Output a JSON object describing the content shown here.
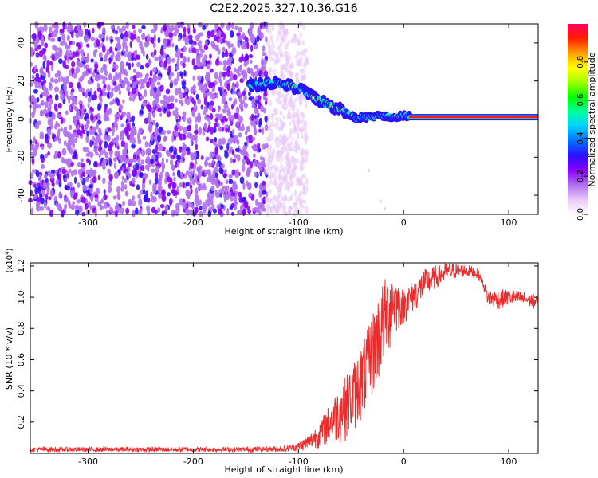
{
  "title": "C2E2.2025.327.10.36.G16",
  "chart_data": [
    {
      "type": "heatmap",
      "name": "spectrogram",
      "xlabel": "Height of straight line (km)",
      "ylabel": "Frequency (Hz)",
      "xlim": [
        -355,
        128
      ],
      "ylim": [
        -50,
        50
      ],
      "xticks": [
        -300,
        -200,
        -100,
        0,
        100
      ],
      "xtick_labels": [
        "-300",
        "-200",
        "-100",
        "0",
        "100"
      ],
      "yticks": [
        -40,
        -20,
        0,
        20,
        40
      ],
      "ytick_labels": [
        "-40",
        "-20",
        "0",
        "20",
        "40"
      ],
      "noise_region_x": [
        -355,
        -100
      ],
      "signal_track": {
        "x": [
          -147,
          -130,
          -120,
          -110,
          -100,
          -90,
          -80,
          -70,
          -60,
          -50,
          -45,
          -40,
          -30,
          -20,
          -10,
          0,
          10,
          50,
          100,
          128
        ],
        "y": [
          17,
          19,
          19,
          18,
          16,
          13,
          10,
          7,
          5,
          2,
          0,
          1,
          1,
          2,
          1,
          2,
          1,
          0.5,
          0.5,
          0.5
        ]
      },
      "colorbar": {
        "label": "Normalized spectral amplitude",
        "range": [
          0.0,
          1.0
        ],
        "ticks": [
          0.0,
          0.2,
          0.4,
          0.6,
          0.8
        ],
        "tick_labels": [
          "0.0",
          "0.2",
          "0.4",
          "0.6",
          "0.8"
        ],
        "colors": [
          "#ffffff",
          "#e8c8f8",
          "#b070f0",
          "#8a00ff",
          "#2a10ff",
          "#0070ff",
          "#00d0ff",
          "#00ffa0",
          "#00ff00",
          "#a0ff00",
          "#ffff00",
          "#ffa000",
          "#ff2000",
          "#ff0060"
        ]
      }
    },
    {
      "type": "line",
      "name": "snr",
      "xlabel": "Height of straight line (km)",
      "ylabel": "SNR (10 * v/v)",
      "y_multiplier": "(x10",
      "y_multiplier_exp": "4",
      "y_multiplier_close": ")",
      "xlim": [
        -355,
        128
      ],
      "ylim": [
        0,
        1.22
      ],
      "xticks": [
        -300,
        -200,
        -100,
        0,
        100
      ],
      "xtick_labels": [
        "-300",
        "-200",
        "-100",
        "0",
        "100"
      ],
      "yticks": [
        0.2,
        0.4,
        0.6,
        0.8,
        1.0,
        1.2
      ],
      "ytick_labels": [
        "0.2",
        "0.4",
        "0.6",
        "0.8",
        "1.0",
        "1.2"
      ],
      "color": "#ee2a2a",
      "envelope": {
        "x": [
          -355,
          -150,
          -110,
          -100,
          -90,
          -80,
          -70,
          -60,
          -50,
          -45,
          -40,
          -35,
          -30,
          -25,
          -20,
          -15,
          -10,
          -5,
          0,
          10,
          20,
          30,
          40,
          50,
          60,
          70,
          75,
          80,
          90,
          100,
          110,
          128
        ],
        "low": [
          0.01,
          0.01,
          0.01,
          0.01,
          0.02,
          0.03,
          0.05,
          0.06,
          0.1,
          0.15,
          0.2,
          0.25,
          0.35,
          0.4,
          0.5,
          0.6,
          0.7,
          0.78,
          0.82,
          0.9,
          1.0,
          1.05,
          1.1,
          1.12,
          1.13,
          1.12,
          1.08,
          0.95,
          0.92,
          0.95,
          0.95,
          0.92
        ],
        "high": [
          0.04,
          0.04,
          0.05,
          0.07,
          0.12,
          0.2,
          0.32,
          0.45,
          0.55,
          0.62,
          0.7,
          0.78,
          0.9,
          1.0,
          1.1,
          1.15,
          1.2,
          1.1,
          1.05,
          1.12,
          1.18,
          1.2,
          1.22,
          1.22,
          1.21,
          1.19,
          1.12,
          1.05,
          1.05,
          1.05,
          1.04,
          1.02
        ]
      }
    }
  ]
}
